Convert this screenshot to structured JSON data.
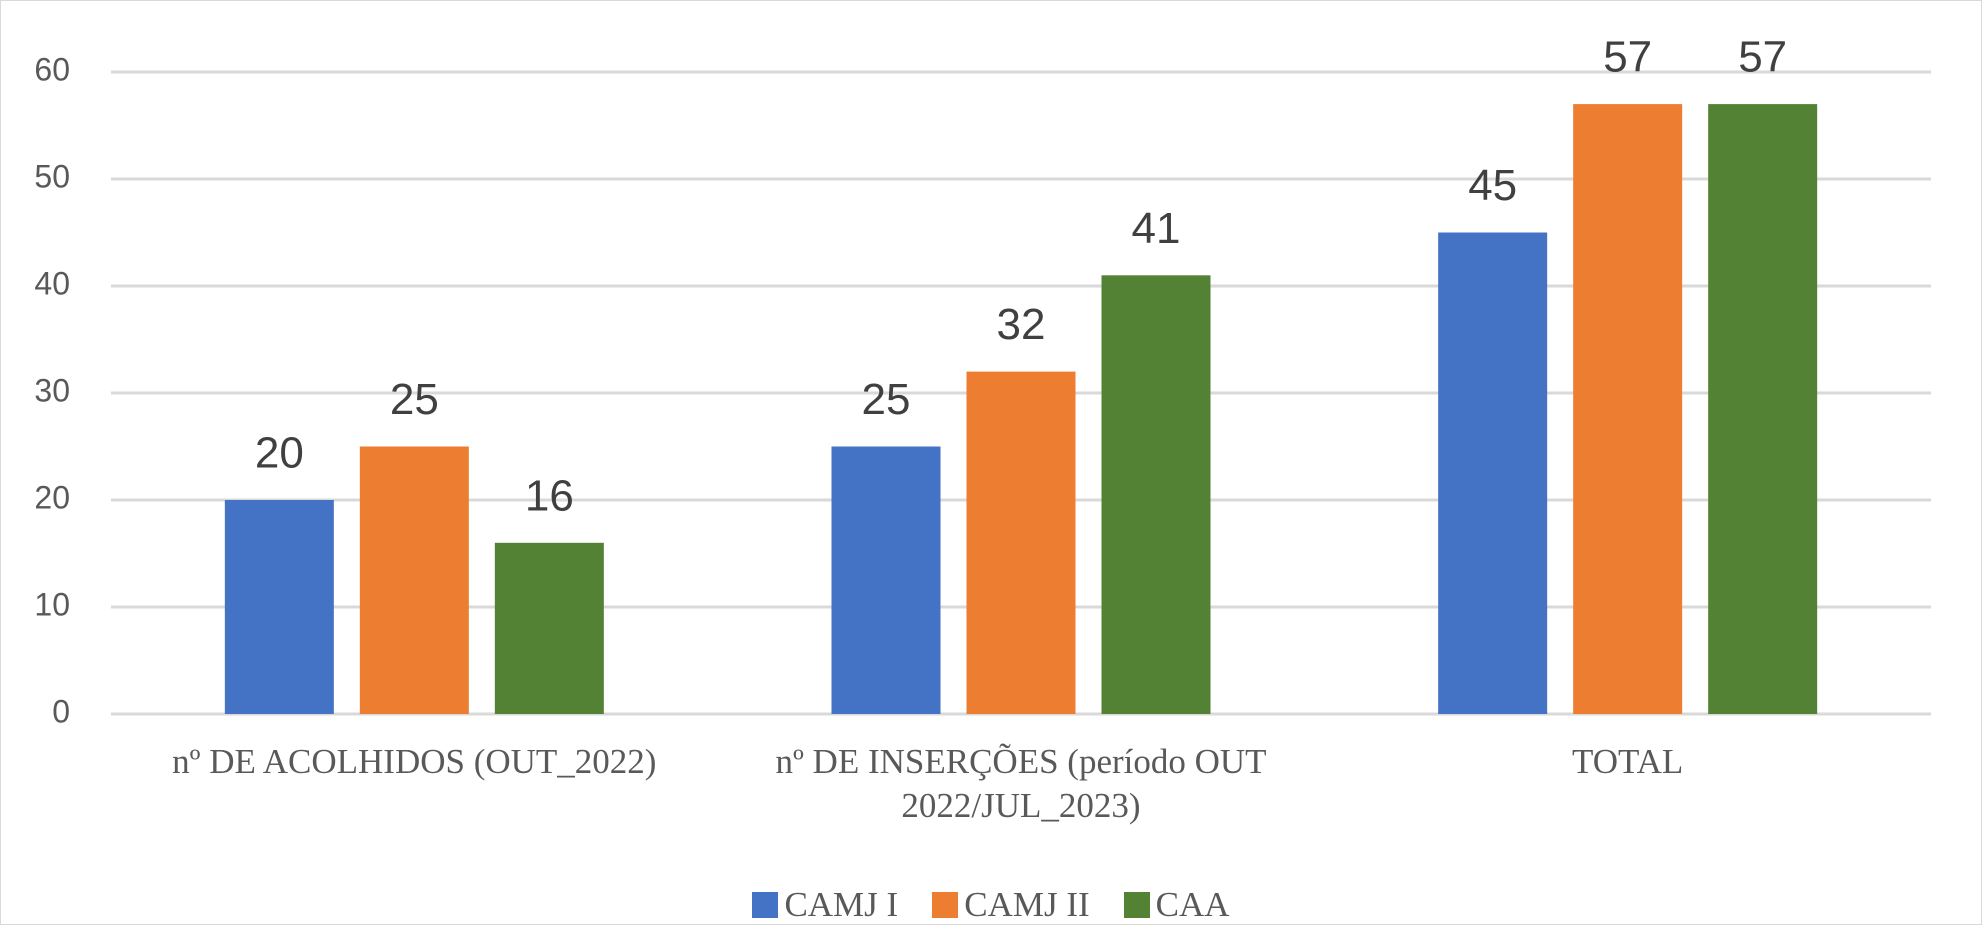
{
  "chart_data": {
    "type": "bar",
    "categories": [
      "nº DE ACOLHIDOS (OUT_2022)",
      "nº DE INSERÇÕES (período OUT 2022/JUL_2023)",
      "TOTAL"
    ],
    "series": [
      {
        "name": "CAMJ I",
        "color": "#4472c4",
        "values": [
          20,
          25,
          45
        ]
      },
      {
        "name": "CAMJ II",
        "color": "#ed7d31",
        "values": [
          25,
          32,
          57
        ]
      },
      {
        "name": "CAA",
        "color": "#548235",
        "values": [
          16,
          41,
          57
        ]
      }
    ],
    "ylim": [
      0,
      60
    ],
    "yticks": [
      0,
      10,
      20,
      30,
      40,
      50,
      60
    ],
    "grid": true,
    "legend": "bottom"
  }
}
